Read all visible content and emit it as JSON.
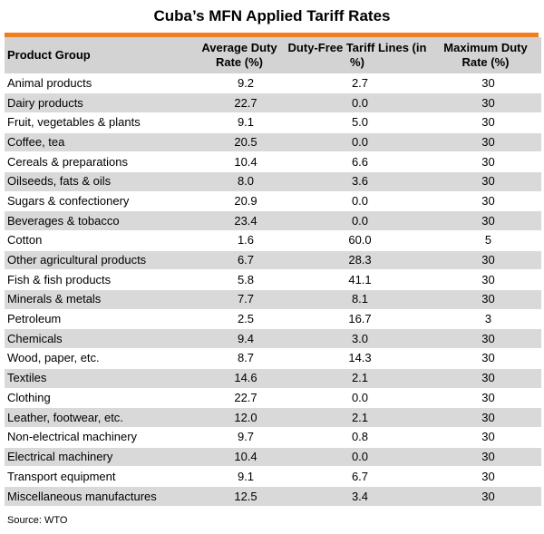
{
  "colors": {
    "accent": "#f07d1e",
    "header_bg": "#d3d3d3",
    "row_shaded": "#d9d9d9",
    "row_plain": "#ffffff"
  },
  "chart_data": {
    "type": "table",
    "title": "Cuba’s MFN Applied Tariff Rates",
    "columns": [
      "Product Group",
      "Average Duty Rate (%)",
      "Duty-Free Tariff Lines (in %)",
      "Maximum Duty Rate (%)"
    ],
    "rows": [
      [
        "Animal products",
        "9.2",
        "2.7",
        "30"
      ],
      [
        "Dairy products",
        "22.7",
        "0.0",
        "30"
      ],
      [
        "Fruit, vegetables & plants",
        "9.1",
        "5.0",
        "30"
      ],
      [
        "Coffee, tea",
        "20.5",
        "0.0",
        "30"
      ],
      [
        "Cereals & preparations",
        "10.4",
        "6.6",
        "30"
      ],
      [
        "Oilseeds, fats & oils",
        "8.0",
        "3.6",
        "30"
      ],
      [
        "Sugars & confectionery",
        "20.9",
        "0.0",
        "30"
      ],
      [
        "Beverages & tobacco",
        "23.4",
        "0.0",
        "30"
      ],
      [
        "Cotton",
        "1.6",
        "60.0",
        "5"
      ],
      [
        "Other agricultural products",
        "6.7",
        "28.3",
        "30"
      ],
      [
        "Fish & fish products",
        "5.8",
        "41.1",
        "30"
      ],
      [
        "Minerals & metals",
        "7.7",
        "8.1",
        "30"
      ],
      [
        "Petroleum",
        "2.5",
        "16.7",
        "3"
      ],
      [
        "Chemicals",
        "9.4",
        "3.0",
        "30"
      ],
      [
        "Wood, paper, etc.",
        "8.7",
        "14.3",
        "30"
      ],
      [
        "Textiles",
        "14.6",
        "2.1",
        "30"
      ],
      [
        "Clothing",
        "22.7",
        "0.0",
        "30"
      ],
      [
        "Leather, footwear, etc.",
        "12.0",
        "2.1",
        "30"
      ],
      [
        "Non-electrical machinery",
        "9.7",
        "0.8",
        "30"
      ],
      [
        "Electrical machinery",
        "10.4",
        "0.0",
        "30"
      ],
      [
        "Transport equipment",
        "9.1",
        "6.7",
        "30"
      ],
      [
        "Miscellaneous manufactures",
        "12.5",
        "3.4",
        "30"
      ]
    ],
    "source": "Source: WTO"
  }
}
